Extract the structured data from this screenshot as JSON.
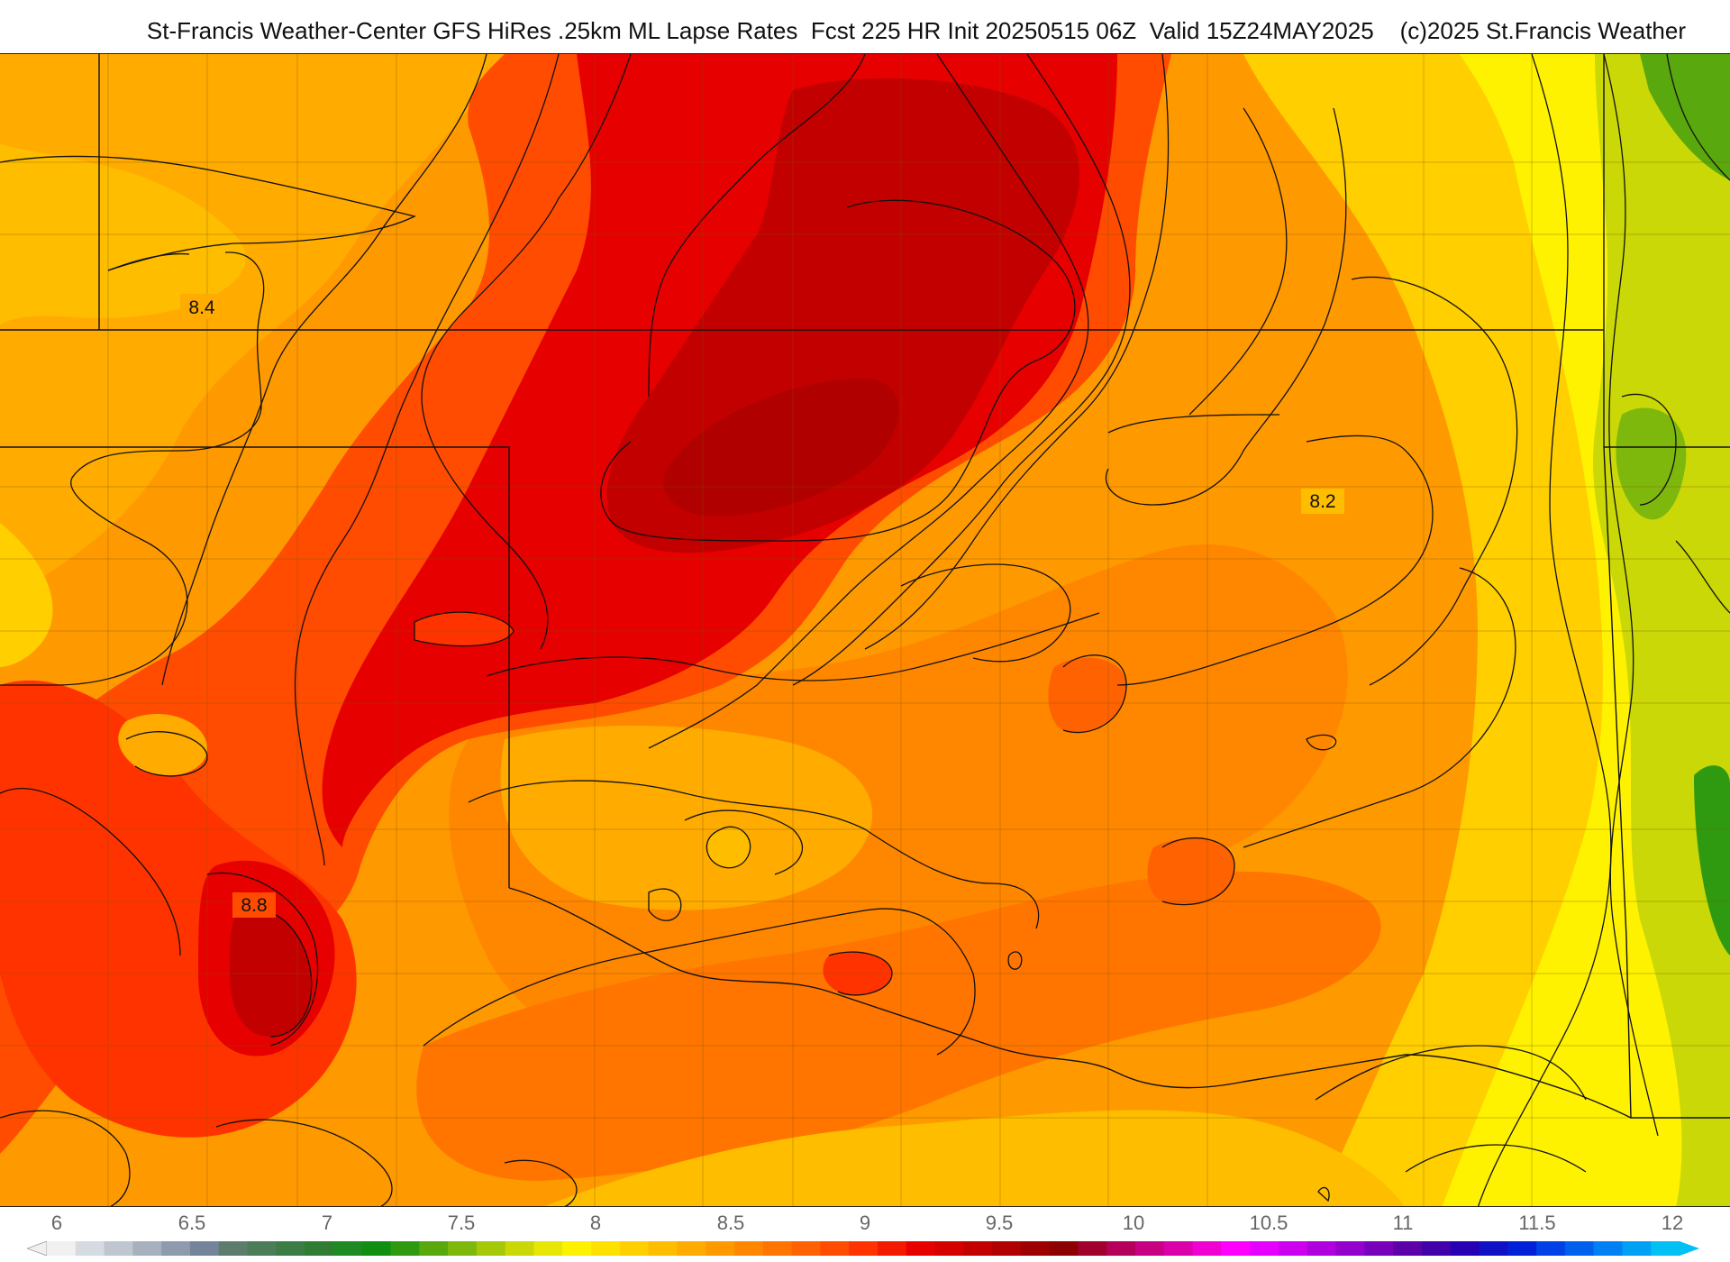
{
  "header": {
    "title": "St-Francis Weather-Center GFS HiRes .25km ML Lapse Rates  Fcst 225 HR Init 20250515 06Z  Valid 15Z24MAY2025    (c)2025 St.Francis Weather"
  },
  "map": {
    "contour_labels": [
      {
        "id": "lbl-84",
        "text": "8.4"
      },
      {
        "id": "lbl-88",
        "text": "8.8"
      },
      {
        "id": "lbl-82",
        "text": "8.2"
      }
    ]
  },
  "colorbar": {
    "ticks": [
      "6",
      "6.5",
      "7",
      "7.5",
      "8",
      "8.5",
      "9",
      "9.5",
      "10",
      "10.5",
      "11",
      "11.5",
      "12"
    ],
    "colors": [
      "#f0f0f0",
      "#d6dbe2",
      "#bfc6d0",
      "#a7b0bf",
      "#8e9aae",
      "#74849a",
      "#5d7c6e",
      "#4a7d58",
      "#3b7d44",
      "#2e7d32",
      "#1f8a24",
      "#108e12",
      "#2f9a10",
      "#58a80e",
      "#7fb80c",
      "#a5c809",
      "#c9d806",
      "#e7e605",
      "#fff200",
      "#ffe100",
      "#ffcf00",
      "#ffbd00",
      "#ffab00",
      "#ff9900",
      "#ff8700",
      "#ff7500",
      "#ff6200",
      "#ff4c00",
      "#ff3300",
      "#f41a00",
      "#e60000",
      "#d40000",
      "#c20000",
      "#b00000",
      "#9e0000",
      "#8c0000",
      "#a0002e",
      "#b4005a",
      "#c80082",
      "#dc00aa",
      "#f000d2",
      "#ff00ff",
      "#e600ff",
      "#cc00ee",
      "#b000dd",
      "#9400cc",
      "#7800bb",
      "#5c00aa",
      "#4000aa",
      "#2800b4",
      "#1010c4",
      "#0020d8",
      "#0040e6",
      "#0060ee",
      "#0080f2",
      "#00a0f4",
      "#00c0f4"
    ]
  }
}
